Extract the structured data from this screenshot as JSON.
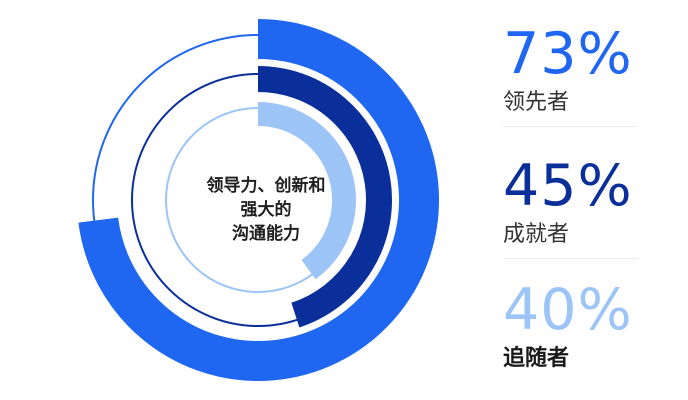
{
  "chart_data": {
    "type": "radial-bar",
    "center_label": [
      "领导力、创新和",
      "强大的",
      "沟通能力"
    ],
    "series": [
      {
        "label": "领先者",
        "value": 73,
        "value_text": "73%",
        "color": "#1f66f0"
      },
      {
        "label": "成就者",
        "value": 45,
        "value_text": "45%",
        "color": "#0b2f9a"
      },
      {
        "label": "追随者",
        "value": 40,
        "value_text": "40%",
        "color": "#9cc4f7"
      }
    ],
    "track_colors": [
      "#1f66f0",
      "#0b2f9a",
      "#9cc4f7"
    ],
    "max": 100
  }
}
